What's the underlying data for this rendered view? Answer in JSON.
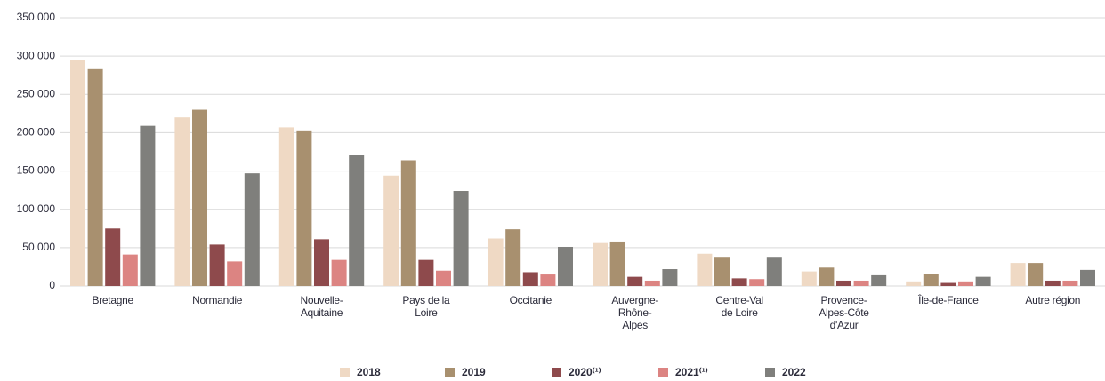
{
  "chart_data": {
    "type": "bar",
    "categories": [
      "Bretagne",
      "Normandie",
      "Nouvelle-\nAquitaine",
      "Pays de la\nLoire",
      "Occitanie",
      "Auvergne-\nRhône-\nAlpes",
      "Centre-Val\nde Loire",
      "Provence-\nAlpes-Côte\nd'Azur",
      "Île-de-France",
      "Autre région"
    ],
    "series": [
      {
        "name": "2018",
        "color": "#efd9c4",
        "values": [
          295000,
          220000,
          207000,
          144000,
          62000,
          56000,
          42000,
          19000,
          6000,
          30000
        ]
      },
      {
        "name": "2019",
        "color": "#a8906f",
        "values": [
          283000,
          230000,
          203000,
          164000,
          74000,
          58000,
          38000,
          24000,
          16000,
          30000
        ]
      },
      {
        "name": "2020⁽¹⁾",
        "color": "#8e4a4c",
        "values": [
          75000,
          54000,
          61000,
          34000,
          18000,
          12000,
          10000,
          7000,
          4000,
          7000
        ]
      },
      {
        "name": "2021⁽¹⁾",
        "color": "#dc8482",
        "values": [
          41000,
          32000,
          34000,
          20000,
          15000,
          7000,
          9000,
          7000,
          6000,
          7000
        ]
      },
      {
        "name": "2022",
        "color": "#7f7f7c",
        "values": [
          209000,
          147000,
          171000,
          124000,
          51000,
          22000,
          38000,
          14000,
          12000,
          21000
        ]
      }
    ],
    "ylim": [
      0,
      350000
    ],
    "yticks": [
      0,
      {
        "value": 50000,
        "label": "50 000"
      },
      {
        "value": 100000,
        "label": "100 000"
      },
      {
        "value": 150000,
        "label": "150 000"
      },
      {
        "value": 200000,
        "label": "200 000"
      },
      {
        "value": 250000,
        "label": "250 000"
      },
      {
        "value": 300000,
        "label": "300 000"
      },
      {
        "value": 350000,
        "label": "350 000"
      }
    ],
    "grid": true,
    "legend": "bottom"
  }
}
